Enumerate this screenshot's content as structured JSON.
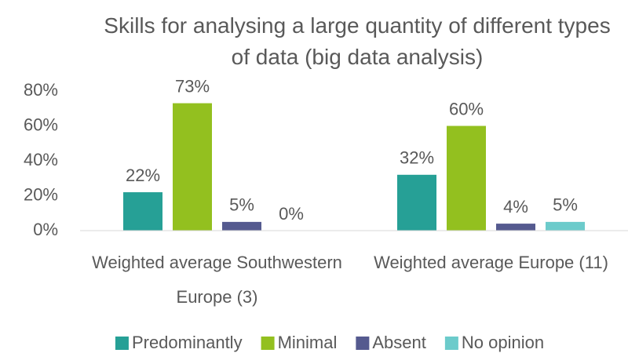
{
  "chart_data": {
    "type": "bar",
    "title": "Skills for analysing a large quantity of different types of data (big data analysis)",
    "categories": [
      "Weighted average Southwestern Europe (3)",
      "Weighted average Europe (11)"
    ],
    "series": [
      {
        "name": "Predominantly",
        "color": "#26a096",
        "values": [
          22,
          32
        ],
        "value_labels": [
          "22%",
          "32%"
        ]
      },
      {
        "name": "Minimal",
        "color": "#93c01f",
        "values": [
          73,
          60
        ],
        "value_labels": [
          "73%",
          "60%"
        ]
      },
      {
        "name": "Absent",
        "color": "#555a8f",
        "values": [
          5,
          4
        ],
        "value_labels": [
          "5%",
          "4%"
        ]
      },
      {
        "name": "No opinion",
        "color": "#6ccbcb",
        "values": [
          0,
          5
        ],
        "value_labels": [
          "0%",
          "5%"
        ]
      }
    ],
    "ylim": [
      0,
      80
    ],
    "yticks": [
      {
        "value": 0,
        "label": "0%"
      },
      {
        "value": 20,
        "label": "20%"
      },
      {
        "value": 40,
        "label": "40%"
      },
      {
        "value": 60,
        "label": "60%"
      },
      {
        "value": 80,
        "label": "80%"
      }
    ],
    "grid": false,
    "legend": "bottom"
  }
}
